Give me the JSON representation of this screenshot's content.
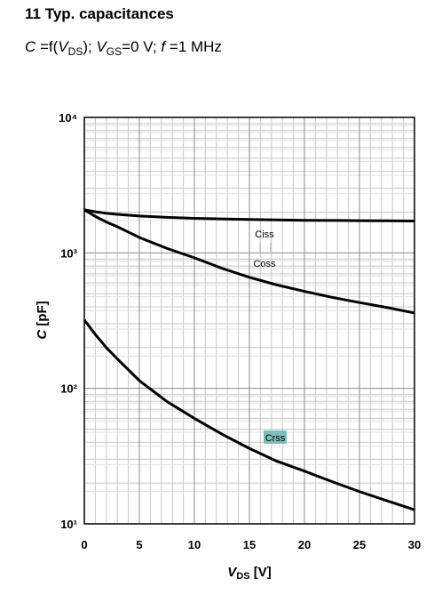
{
  "chart_data": {
    "type": "line",
    "title": "11 Typ. capacitances",
    "subtitle": [
      "C",
      " =f(",
      "V",
      "DS",
      "); ",
      "V",
      "GS",
      "=0 V; ",
      "f",
      " =1 MHz"
    ],
    "x_label": [
      "V",
      "DS",
      " [V]"
    ],
    "y_label": [
      "C",
      " [pF]"
    ],
    "x": [
      0,
      1,
      2,
      3,
      5,
      7.5,
      10,
      12.5,
      15,
      17.5,
      20,
      22.5,
      25,
      27.5,
      30
    ],
    "series": [
      {
        "name": "Ciss",
        "color": "#000000",
        "values": [
          2080,
          2010,
          1960,
          1925,
          1870,
          1830,
          1800,
          1780,
          1765,
          1750,
          1740,
          1735,
          1730,
          1725,
          1720
        ]
      },
      {
        "name": "Coss",
        "color": "#000000",
        "values": [
          2080,
          1860,
          1690,
          1560,
          1300,
          1080,
          920,
          770,
          660,
          580,
          520,
          470,
          430,
          395,
          360
        ]
      },
      {
        "name": "Crss",
        "color": "#000000",
        "values": [
          320,
          250,
          200,
          165,
          114,
          80,
          60,
          46,
          36,
          29,
          24.5,
          20.5,
          17.3,
          14.8,
          12.7
        ]
      }
    ],
    "xlim": [
      0,
      30
    ],
    "xticks": [
      0,
      5,
      10,
      15,
      20,
      25,
      30
    ],
    "ylim": [
      10,
      10000
    ],
    "yticks": [
      {
        "value": 10,
        "label": "10¹"
      },
      {
        "value": 100,
        "label": "10²"
      },
      {
        "value": 1000,
        "label": "10³"
      },
      {
        "value": 10000,
        "label": "10⁴"
      }
    ],
    "y_scale": "log",
    "grid": true,
    "minor_grid": true
  }
}
